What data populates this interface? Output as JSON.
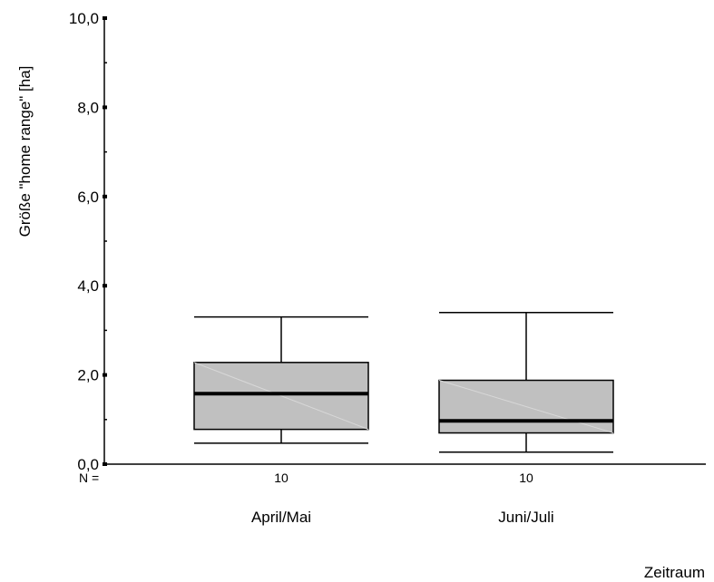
{
  "chart_data": {
    "type": "box",
    "ylabel": "Größe \"home range\" [ha]",
    "xlabel": "Zeitraum",
    "ylim": [
      0,
      10
    ],
    "yticks": [
      {
        "value": 0,
        "label": "0,0"
      },
      {
        "value": 2,
        "label": "2,0"
      },
      {
        "value": 4,
        "label": "4,0"
      },
      {
        "value": 6,
        "label": "6,0"
      },
      {
        "value": 8,
        "label": "8,0"
      },
      {
        "value": 10,
        "label": "10,0"
      }
    ],
    "n_prefix": "N =",
    "categories": [
      "April/Mai",
      "Juni/Juli"
    ],
    "boxes": [
      {
        "category": "April/Mai",
        "n": "10",
        "min": 0.47,
        "q1": 0.78,
        "median": 1.58,
        "q3": 2.28,
        "max": 3.3
      },
      {
        "category": "Juni/Juli",
        "n": "10",
        "min": 0.27,
        "q1": 0.7,
        "median": 0.97,
        "q3": 1.88,
        "max": 3.4
      }
    ],
    "box_color": "#c0c0c0"
  }
}
